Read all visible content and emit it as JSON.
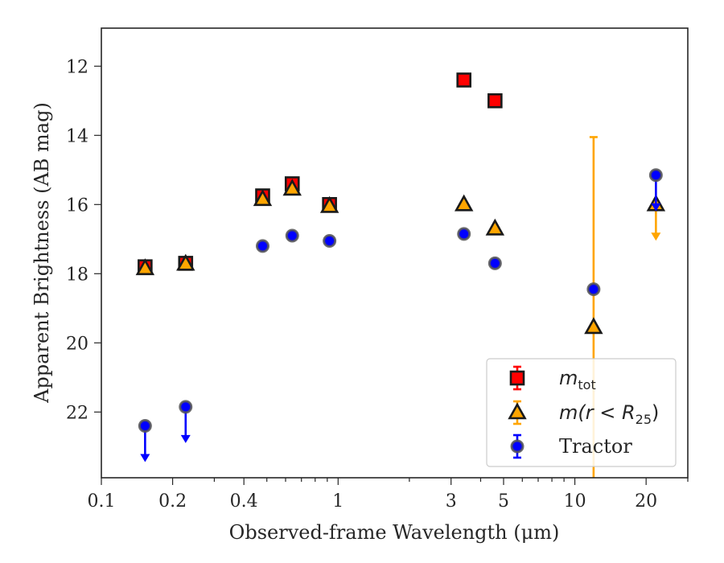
{
  "chart_data": {
    "type": "scatter",
    "xlabel": "Observed-frame Wavelength (μm)",
    "ylabel": "Apparent Brightness (AB mag)",
    "xscale": "log",
    "xlim": [
      0.1,
      30
    ],
    "ylim": [
      23.9,
      10.9
    ],
    "y_inverted": true,
    "x_ticks": [
      {
        "value": 0.1,
        "label": "0.1"
      },
      {
        "value": 0.2,
        "label": "0.2"
      },
      {
        "value": 0.4,
        "label": "0.4"
      },
      {
        "value": 1,
        "label": "1"
      },
      {
        "value": 3,
        "label": "3"
      },
      {
        "value": 5,
        "label": "5"
      },
      {
        "value": 10,
        "label": "10"
      },
      {
        "value": 20,
        "label": "20"
      }
    ],
    "y_ticks": [
      {
        "value": 12,
        "label": "12"
      },
      {
        "value": 14,
        "label": "14"
      },
      {
        "value": 16,
        "label": "16"
      },
      {
        "value": 18,
        "label": "18"
      },
      {
        "value": 20,
        "label": "20"
      },
      {
        "value": 22,
        "label": "22"
      }
    ],
    "grid": false,
    "legend_position": "bottom-right",
    "series": [
      {
        "key": "mtot",
        "legend_main": "m",
        "legend_sub": "tot",
        "marker": "square",
        "color": "#ff0000",
        "errorbar_color": "#ff0000",
        "points": [
          {
            "x": 0.153,
            "y": 17.8
          },
          {
            "x": 0.227,
            "y": 17.7
          },
          {
            "x": 0.48,
            "y": 15.75
          },
          {
            "x": 0.64,
            "y": 15.4
          },
          {
            "x": 0.92,
            "y": 16.0
          },
          {
            "x": 3.4,
            "y": 12.4
          },
          {
            "x": 4.6,
            "y": 13.0
          }
        ]
      },
      {
        "key": "mr25",
        "legend_main": "m(r < R",
        "legend_sub": "25",
        "legend_tail": ")",
        "marker": "triangle",
        "color": "#ffa500",
        "errorbar_color": "#ffa500",
        "points": [
          {
            "x": 0.153,
            "y": 17.85
          },
          {
            "x": 0.227,
            "y": 17.72
          },
          {
            "x": 0.48,
            "y": 15.85
          },
          {
            "x": 0.64,
            "y": 15.55
          },
          {
            "x": 0.92,
            "y": 16.05
          },
          {
            "x": 3.4,
            "y": 16.0
          },
          {
            "x": 4.6,
            "y": 16.7
          },
          {
            "x": 12.0,
            "y": 19.55,
            "yerr_low": 14.05,
            "yerr_high": 25.0
          },
          {
            "x": 22.0,
            "y": 16.0,
            "upper_limit": 17.0
          }
        ]
      },
      {
        "key": "tractor",
        "legend_main": "Tractor",
        "marker": "circle",
        "color": "#0000ff",
        "errorbar_color": "#0000ff",
        "points": [
          {
            "x": 0.153,
            "y": 22.4,
            "upper_limit": 23.4
          },
          {
            "x": 0.227,
            "y": 21.85,
            "upper_limit": 22.85
          },
          {
            "x": 0.48,
            "y": 17.2
          },
          {
            "x": 0.64,
            "y": 16.9
          },
          {
            "x": 0.92,
            "y": 17.05
          },
          {
            "x": 3.4,
            "y": 16.85
          },
          {
            "x": 4.6,
            "y": 17.7
          },
          {
            "x": 12.0,
            "y": 18.45
          },
          {
            "x": 22.0,
            "y": 15.15,
            "upper_limit": 16.15
          }
        ]
      }
    ]
  }
}
